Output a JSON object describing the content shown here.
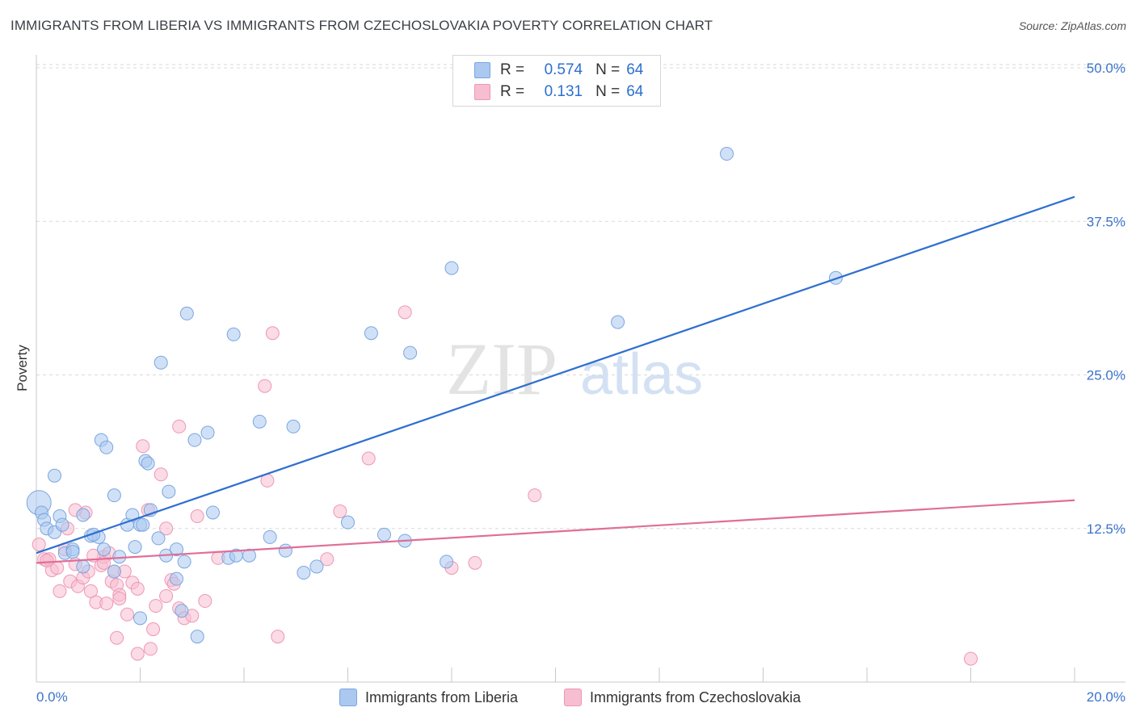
{
  "title": "IMMIGRANTS FROM LIBERIA VS IMMIGRANTS FROM CZECHOSLOVAKIA POVERTY CORRELATION CHART",
  "source": "Source: ZipAtlas.com",
  "watermark": {
    "zip": "ZIP",
    "atlas": "atlas"
  },
  "legend": {
    "r_label": "R =",
    "n_label": "N =",
    "rows": [
      {
        "r": "0.574",
        "n": "64"
      },
      {
        "r": "0.131",
        "n": "64"
      }
    ]
  },
  "colors": {
    "blue_fill": "#aac8f0",
    "blue_stroke": "#7aa6df",
    "blue_line": "#2f6fd0",
    "pink_fill": "#f7bdd0",
    "pink_stroke": "#ee97b5",
    "pink_line": "#e06e98",
    "tick_text": "#3b73cc",
    "grid": "#d9d9d9"
  },
  "chart_data": {
    "type": "scatter",
    "xlabel": "",
    "ylabel": "Poverty",
    "xlim": [
      0,
      20
    ],
    "ylim": [
      0,
      50
    ],
    "x_tick_labels": [
      "0.0%",
      "20.0%"
    ],
    "y_ticks": [
      12.5,
      25.0,
      37.5,
      50.0
    ],
    "y_tick_labels": [
      "12.5%",
      "25.0%",
      "37.5%",
      "50.0%"
    ],
    "grid": "horizontal dashed",
    "legend_position": "top-center",
    "series": [
      {
        "name": "Immigrants from Liberia",
        "color": "blue",
        "trend": {
          "x": [
            0,
            20
          ],
          "y": [
            10.5,
            39.5
          ]
        },
        "points": [
          [
            0.05,
            14.6
          ],
          [
            0.1,
            13.8
          ],
          [
            0.15,
            13.2
          ],
          [
            0.2,
            12.5
          ],
          [
            0.35,
            12.2
          ],
          [
            0.45,
            13.5
          ],
          [
            0.5,
            12.8
          ],
          [
            0.55,
            10.5
          ],
          [
            0.7,
            10.8
          ],
          [
            0.9,
            13.6
          ],
          [
            1.05,
            11.9
          ],
          [
            1.2,
            11.8
          ],
          [
            1.3,
            10.8
          ],
          [
            1.5,
            15.2
          ],
          [
            1.6,
            10.2
          ],
          [
            1.75,
            12.8
          ],
          [
            1.85,
            13.6
          ],
          [
            1.9,
            11.0
          ],
          [
            2.0,
            12.8
          ],
          [
            2.1,
            18.0
          ],
          [
            2.2,
            14.0
          ],
          [
            2.35,
            11.7
          ],
          [
            2.5,
            10.3
          ],
          [
            2.55,
            15.5
          ],
          [
            2.7,
            10.8
          ],
          [
            2.85,
            9.8
          ],
          [
            3.05,
            19.7
          ],
          [
            3.3,
            20.3
          ],
          [
            3.4,
            13.8
          ],
          [
            3.7,
            10.1
          ],
          [
            3.85,
            10.3
          ],
          [
            4.1,
            10.3
          ],
          [
            4.3,
            21.2
          ],
          [
            4.5,
            11.8
          ],
          [
            4.8,
            10.7
          ],
          [
            4.95,
            20.8
          ],
          [
            5.15,
            8.9
          ],
          [
            5.4,
            9.4
          ],
          [
            6.0,
            13.0
          ],
          [
            6.7,
            12.0
          ],
          [
            7.1,
            11.5
          ],
          [
            7.9,
            9.8
          ],
          [
            0.35,
            16.8
          ],
          [
            1.25,
            19.7
          ],
          [
            1.35,
            19.1
          ],
          [
            2.15,
            17.8
          ],
          [
            2.4,
            26.0
          ],
          [
            2.9,
            30.0
          ],
          [
            3.8,
            28.3
          ],
          [
            6.45,
            28.4
          ],
          [
            7.2,
            26.8
          ],
          [
            8.0,
            33.7
          ],
          [
            11.2,
            29.3
          ],
          [
            13.3,
            43.0
          ],
          [
            15.4,
            32.9
          ],
          [
            2.0,
            5.2
          ],
          [
            2.8,
            5.8
          ],
          [
            3.1,
            3.7
          ],
          [
            1.5,
            9.0
          ],
          [
            0.9,
            9.4
          ],
          [
            0.7,
            10.6
          ],
          [
            2.7,
            8.4
          ],
          [
            2.05,
            12.8
          ],
          [
            1.1,
            12.0
          ]
        ]
      },
      {
        "name": "Immigrants from Czechoslovakia",
        "color": "pink",
        "trend": {
          "x": [
            0,
            20
          ],
          "y": [
            9.7,
            14.8
          ]
        },
        "points": [
          [
            0.05,
            11.2
          ],
          [
            0.15,
            10.0
          ],
          [
            0.25,
            10.0
          ],
          [
            0.3,
            9.1
          ],
          [
            0.4,
            9.3
          ],
          [
            0.45,
            7.4
          ],
          [
            0.55,
            10.8
          ],
          [
            0.6,
            12.5
          ],
          [
            0.65,
            8.2
          ],
          [
            0.75,
            9.6
          ],
          [
            0.8,
            7.8
          ],
          [
            0.9,
            8.5
          ],
          [
            0.95,
            13.8
          ],
          [
            1.0,
            9.0
          ],
          [
            1.05,
            7.4
          ],
          [
            1.15,
            6.5
          ],
          [
            1.25,
            9.5
          ],
          [
            1.3,
            10.2
          ],
          [
            1.35,
            6.4
          ],
          [
            1.45,
            8.2
          ],
          [
            1.5,
            9.0
          ],
          [
            1.55,
            7.9
          ],
          [
            1.6,
            7.1
          ],
          [
            1.7,
            9.0
          ],
          [
            1.75,
            5.5
          ],
          [
            1.85,
            8.1
          ],
          [
            1.95,
            7.6
          ],
          [
            2.05,
            19.2
          ],
          [
            2.15,
            14.0
          ],
          [
            2.3,
            6.2
          ],
          [
            2.4,
            16.9
          ],
          [
            2.5,
            7.0
          ],
          [
            2.6,
            8.3
          ],
          [
            2.75,
            6.0
          ],
          [
            2.85,
            5.2
          ],
          [
            3.0,
            5.4
          ],
          [
            3.1,
            13.5
          ],
          [
            3.25,
            6.6
          ],
          [
            3.5,
            10.1
          ],
          [
            4.4,
            24.1
          ],
          [
            4.45,
            16.4
          ],
          [
            4.55,
            28.4
          ],
          [
            4.65,
            3.7
          ],
          [
            5.6,
            10.0
          ],
          [
            5.85,
            13.9
          ],
          [
            6.4,
            18.2
          ],
          [
            7.1,
            30.1
          ],
          [
            8.0,
            9.3
          ],
          [
            8.45,
            9.7
          ],
          [
            9.6,
            15.2
          ],
          [
            2.75,
            20.8
          ],
          [
            2.5,
            12.5
          ],
          [
            1.1,
            10.3
          ],
          [
            1.6,
            6.8
          ],
          [
            18.0,
            1.9
          ],
          [
            2.25,
            4.3
          ],
          [
            1.95,
            2.3
          ],
          [
            2.2,
            2.7
          ],
          [
            1.55,
            3.6
          ],
          [
            0.75,
            14.0
          ],
          [
            1.3,
            9.7
          ],
          [
            2.65,
            8.0
          ],
          [
            1.4,
            10.5
          ],
          [
            0.2,
            9.9
          ]
        ]
      }
    ]
  }
}
